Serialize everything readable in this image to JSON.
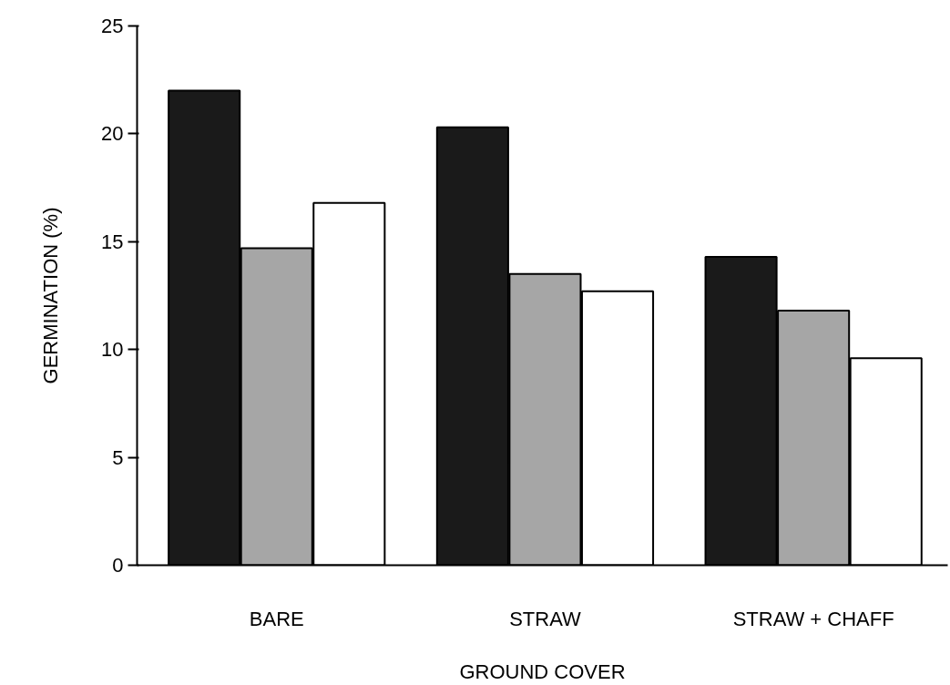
{
  "chart_data": {
    "type": "bar",
    "xlabel": "GROUND COVER",
    "ylabel": "GERMINATION (%)",
    "categories": [
      "BARE",
      "STRAW",
      "STRAW + CHAFF"
    ],
    "series": [
      {
        "color": "#1a1a1a",
        "values": [
          22.0,
          20.3,
          14.3
        ]
      },
      {
        "color": "#a6a6a6",
        "values": [
          14.7,
          13.5,
          11.8
        ]
      },
      {
        "color": "#ffffff",
        "values": [
          16.8,
          12.7,
          9.6
        ]
      }
    ],
    "ylim": [
      0,
      25
    ],
    "yticks": [
      0,
      5,
      10,
      15,
      20,
      25
    ],
    "grid": false
  }
}
